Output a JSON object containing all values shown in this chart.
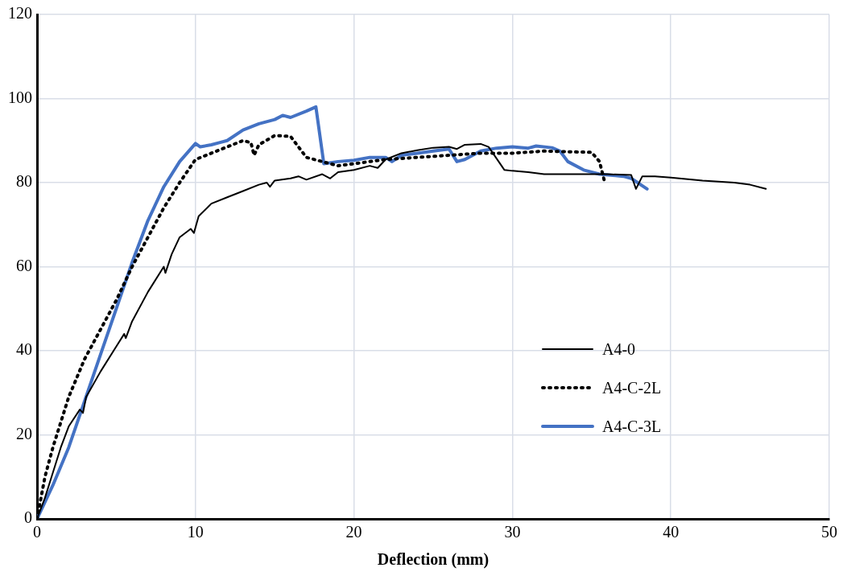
{
  "chart_data": {
    "type": "line",
    "xlabel": "Deflection (mm)",
    "xlim": [
      0,
      50
    ],
    "xticks": [
      0,
      10,
      20,
      30,
      40,
      50
    ],
    "ylim": [
      0,
      120
    ],
    "yticks": [
      0,
      20,
      40,
      60,
      80,
      100,
      120
    ],
    "grid": true,
    "legend": "right",
    "marker": "none",
    "series": [
      {
        "name": "A4-0",
        "color": "#000000",
        "line_style": "solid",
        "x": [
          0,
          0.5,
          1,
          1.5,
          2,
          2.7,
          2.9,
          3.1,
          4,
          5,
          5.5,
          5.6,
          6,
          7,
          8,
          8.1,
          8.5,
          9,
          9.7,
          9.9,
          10.2,
          11,
          12,
          13,
          14,
          14.5,
          14.7,
          15,
          16,
          16.5,
          17,
          18,
          18.5,
          19,
          20,
          21,
          21.5,
          22,
          23,
          24,
          25,
          26,
          26.5,
          27,
          28,
          28.5,
          29.5,
          30,
          31,
          32,
          34,
          36,
          37.5,
          37.8,
          38.2,
          39,
          40,
          42,
          44,
          45,
          46
        ],
        "values": [
          0,
          5,
          11,
          17,
          22,
          26,
          25.2,
          29,
          35,
          41,
          44,
          43,
          47,
          54,
          60,
          58.5,
          63,
          67,
          69,
          68,
          72,
          75,
          76.5,
          78,
          79.5,
          80,
          79,
          80.5,
          81,
          81.5,
          80.7,
          82,
          81,
          82.5,
          83,
          84,
          83.5,
          85.5,
          87,
          87.7,
          88.3,
          88.5,
          88,
          89,
          89.2,
          88.5,
          83,
          82.8,
          82.5,
          82,
          82,
          82,
          81.8,
          78.5,
          81.5,
          81.5,
          81.2,
          80.5,
          80,
          79.5,
          78.5
        ]
      },
      {
        "name": "A4-C-2L",
        "color": "#000000",
        "line_style": "dotted",
        "x": [
          0,
          0.5,
          1,
          2,
          3,
          4,
          5,
          6,
          7,
          8,
          9,
          10,
          11,
          12,
          13,
          13.5,
          13.7,
          14,
          15,
          16,
          16.5,
          17,
          18,
          19,
          20,
          22,
          24,
          26,
          28,
          30,
          32,
          35,
          35.5,
          35.8
        ],
        "values": [
          0,
          10,
          17,
          29,
          38,
          45,
          52,
          60,
          67,
          74,
          80,
          85.5,
          87,
          88.5,
          90,
          89.5,
          86.5,
          89,
          91.2,
          91,
          88.5,
          86,
          85,
          84,
          84.5,
          85.5,
          86,
          86.5,
          87,
          87,
          87.5,
          87.2,
          85,
          80.5
        ]
      },
      {
        "name": "A4-C-3L",
        "color": "#4472c4",
        "line_style": "solid",
        "x": [
          0,
          1,
          2,
          3,
          4,
          5,
          6,
          7,
          8,
          9,
          10,
          10.3,
          11,
          11.5,
          12,
          13,
          14,
          15,
          15.5,
          16,
          17,
          17.6,
          18.1,
          19,
          20,
          21,
          22,
          22.4,
          23,
          24,
          25,
          26,
          26.5,
          27,
          28,
          29,
          30,
          31,
          31.5,
          32.5,
          33,
          33.5,
          34.5,
          35.5,
          37,
          37.5,
          38.5
        ],
        "values": [
          0,
          8,
          17,
          28,
          39,
          50,
          61,
          71,
          79,
          85,
          89.3,
          88.5,
          89,
          89.5,
          90,
          92.5,
          94,
          95,
          96,
          95.5,
          97,
          98,
          84.5,
          85,
          85.3,
          86,
          86,
          85,
          86.5,
          87,
          87.5,
          88,
          85,
          85.5,
          87.5,
          88.2,
          88.5,
          88.2,
          88.7,
          88.3,
          87.5,
          85,
          83,
          82,
          81.5,
          81,
          78.5
        ]
      }
    ]
  }
}
